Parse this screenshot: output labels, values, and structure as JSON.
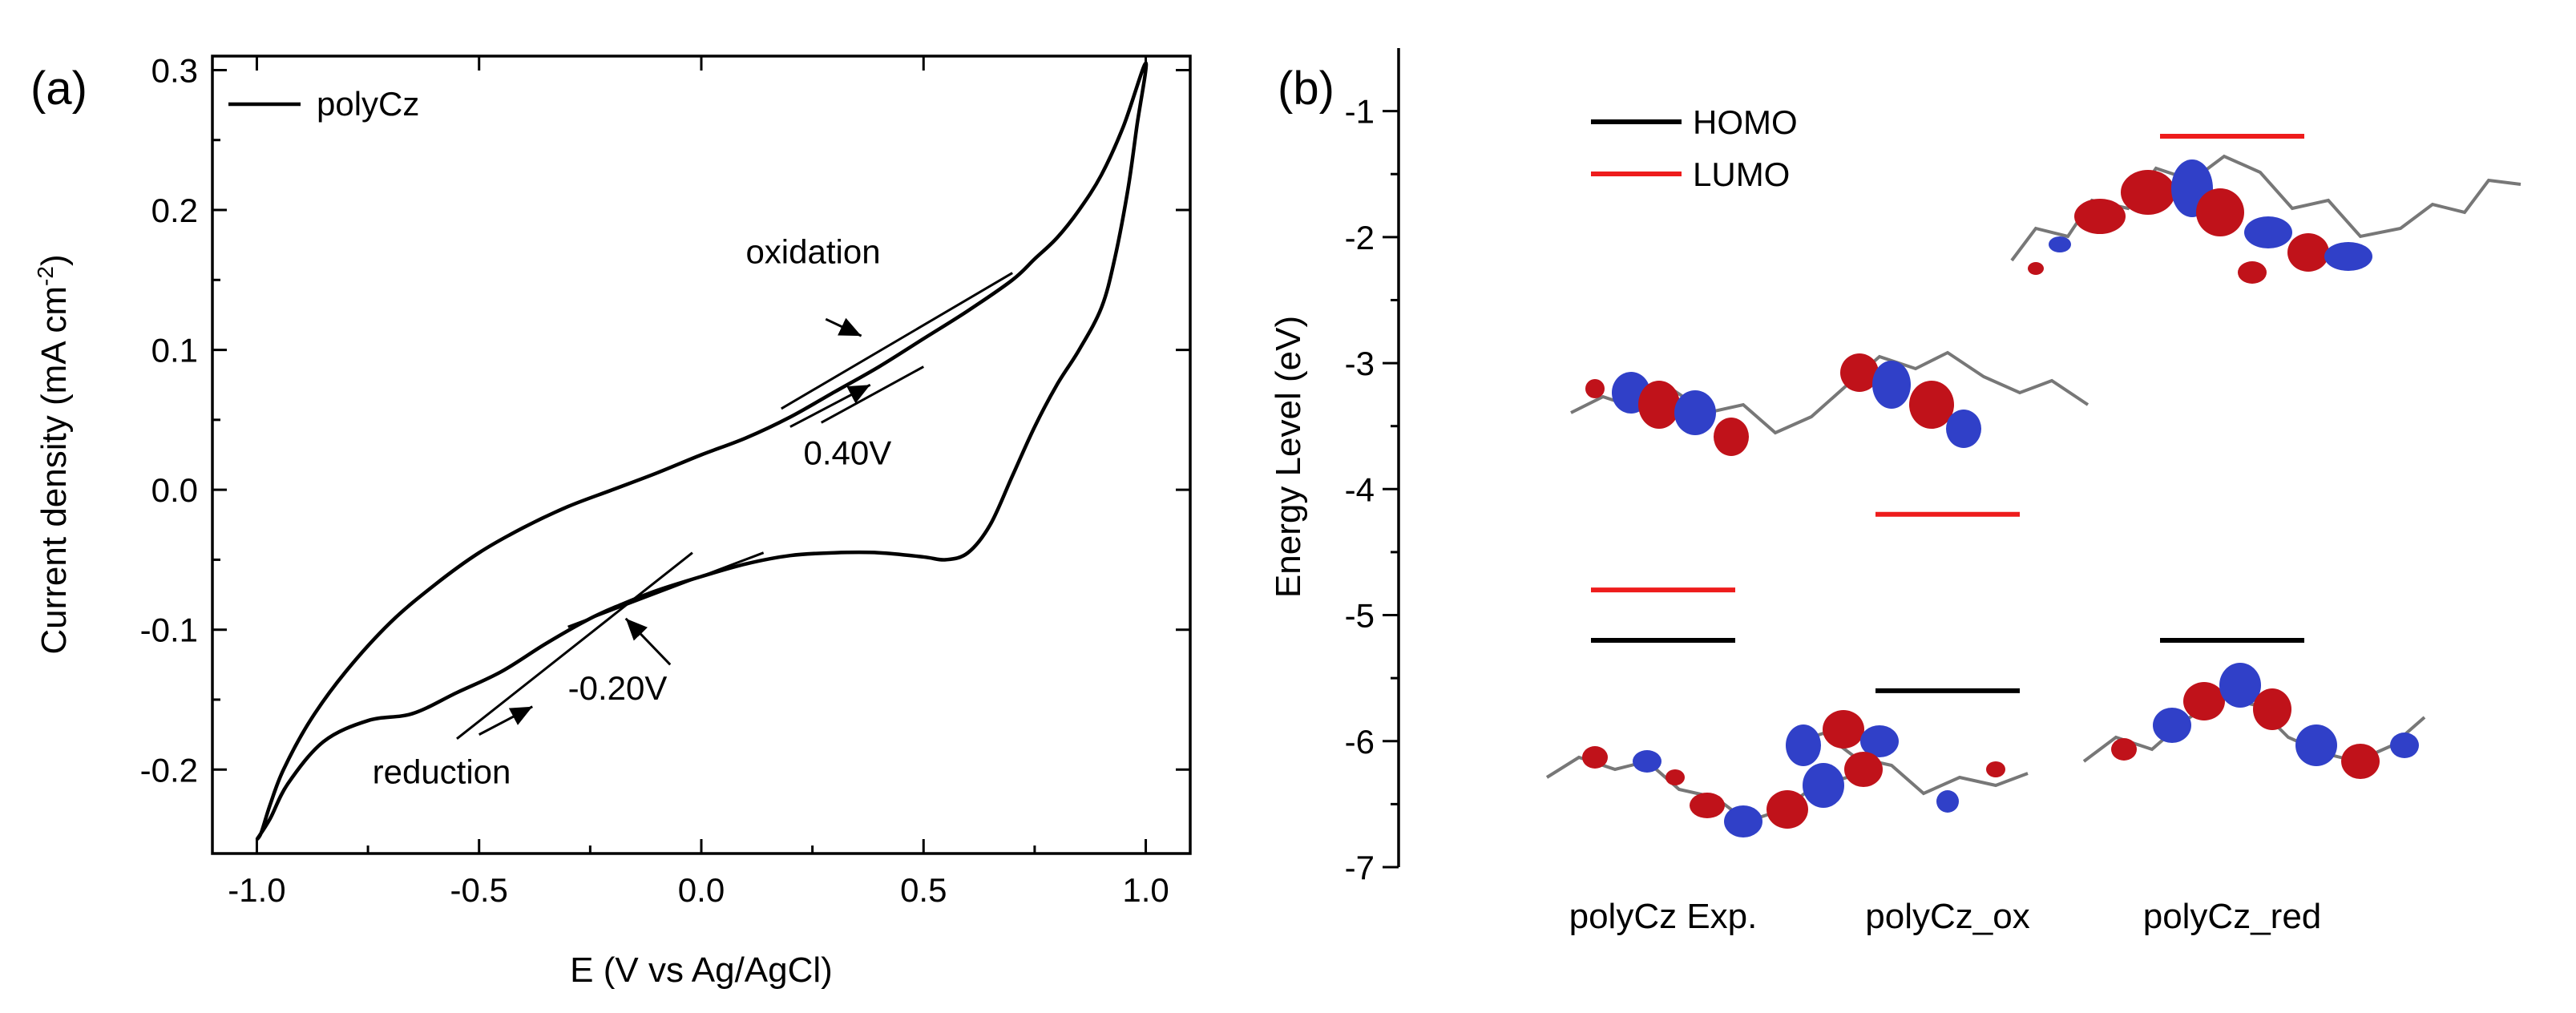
{
  "chart_data": [
    {
      "type": "line",
      "panel_label": "(a)",
      "xlabel": "E (V vs Ag/AgCl)",
      "ylabel_main": "Current density (mA cm",
      "ylabel_sup": "-2",
      "ylabel_close": ")",
      "xlim": [
        -1.1,
        1.1
      ],
      "ylim": [
        -0.26,
        0.31
      ],
      "xticks": [
        -1.0,
        -0.5,
        0.0,
        0.5,
        1.0
      ],
      "xtick_labels": [
        "-1.0",
        "-0.5",
        "0.0",
        "0.5",
        "1.0"
      ],
      "yticks": [
        -0.2,
        -0.1,
        0.0,
        0.1,
        0.2,
        0.3
      ],
      "ytick_labels": [
        "-0.2",
        "-0.1",
        "0.0",
        "0.1",
        "0.2",
        "0.3"
      ],
      "legend": {
        "label": "polyCz",
        "position": "top-left",
        "color": "#000000"
      },
      "series": [
        {
          "name": "polyCz",
          "color": "#000000",
          "points": [
            [
              -1.0,
              -0.25
            ],
            [
              -0.97,
              -0.235
            ],
            [
              -0.93,
              -0.21
            ],
            [
              -0.85,
              -0.18
            ],
            [
              -0.75,
              -0.165
            ],
            [
              -0.65,
              -0.16
            ],
            [
              -0.55,
              -0.145
            ],
            [
              -0.45,
              -0.13
            ],
            [
              -0.35,
              -0.11
            ],
            [
              -0.25,
              -0.092
            ],
            [
              -0.18,
              -0.082
            ],
            [
              -0.1,
              -0.072
            ],
            [
              0.0,
              -0.062
            ],
            [
              0.1,
              -0.053
            ],
            [
              0.2,
              -0.047
            ],
            [
              0.3,
              -0.045
            ],
            [
              0.4,
              -0.045
            ],
            [
              0.5,
              -0.048
            ],
            [
              0.55,
              -0.05
            ],
            [
              0.6,
              -0.045
            ],
            [
              0.65,
              -0.025
            ],
            [
              0.7,
              0.01
            ],
            [
              0.75,
              0.045
            ],
            [
              0.8,
              0.075
            ],
            [
              0.85,
              0.1
            ],
            [
              0.9,
              0.13
            ],
            [
              0.93,
              0.165
            ],
            [
              0.96,
              0.215
            ],
            [
              0.98,
              0.26
            ],
            [
              1.0,
              0.305
            ],
            [
              0.95,
              0.26
            ],
            [
              0.9,
              0.225
            ],
            [
              0.85,
              0.2
            ],
            [
              0.8,
              0.18
            ],
            [
              0.75,
              0.165
            ],
            [
              0.7,
              0.15
            ],
            [
              0.6,
              0.128
            ],
            [
              0.5,
              0.108
            ],
            [
              0.4,
              0.088
            ],
            [
              0.3,
              0.07
            ],
            [
              0.2,
              0.052
            ],
            [
              0.1,
              0.037
            ],
            [
              0.0,
              0.025
            ],
            [
              -0.1,
              0.012
            ],
            [
              -0.2,
              0.0
            ],
            [
              -0.3,
              -0.012
            ],
            [
              -0.4,
              -0.027
            ],
            [
              -0.5,
              -0.045
            ],
            [
              -0.6,
              -0.068
            ],
            [
              -0.7,
              -0.095
            ],
            [
              -0.8,
              -0.13
            ],
            [
              -0.88,
              -0.165
            ],
            [
              -0.94,
              -0.2
            ],
            [
              -0.97,
              -0.225
            ],
            [
              -0.99,
              -0.245
            ],
            [
              -1.0,
              -0.25
            ]
          ]
        }
      ],
      "tangent_lines": [
        {
          "from": [
            0.18,
            0.058
          ],
          "to": [
            0.7,
            0.155
          ]
        },
        {
          "from": [
            0.27,
            0.048
          ],
          "to": [
            0.5,
            0.088
          ]
        },
        {
          "from": [
            -0.3,
            -0.098
          ],
          "to": [
            0.14,
            -0.045
          ]
        },
        {
          "from": [
            -0.55,
            -0.178
          ],
          "to": [
            -0.02,
            -0.045
          ]
        }
      ],
      "annotations": [
        {
          "text": "oxidation",
          "label_at": [
            0.1,
            0.162
          ],
          "arrow_from": [
            0.28,
            0.122
          ],
          "arrow_to": [
            0.36,
            0.11
          ]
        },
        {
          "text": "0.40V",
          "label_at": [
            0.23,
            0.018
          ],
          "arrow_from": [
            0.2,
            0.045
          ],
          "arrow_to": [
            0.38,
            0.075
          ]
        },
        {
          "text": "-0.20V",
          "label_at": [
            -0.3,
            -0.15
          ],
          "arrow_from": [
            -0.07,
            -0.125
          ],
          "arrow_to": [
            -0.17,
            -0.092
          ]
        },
        {
          "text": "reduction",
          "label_at": [
            -0.74,
            -0.21
          ],
          "arrow_from": [
            -0.5,
            -0.175
          ],
          "arrow_to": [
            -0.38,
            -0.155
          ]
        }
      ]
    },
    {
      "type": "energy_level_diagram",
      "panel_label": "(b)",
      "ylabel": "Energy Level (eV)",
      "ylim": [
        -7.0,
        -0.5
      ],
      "yticks": [
        -7,
        -6,
        -5,
        -4,
        -3,
        -2,
        -1
      ],
      "ytick_labels": [
        "-7",
        "-6",
        "-5",
        "-4",
        "-3",
        "-2",
        "-1"
      ],
      "legend": [
        {
          "label": "HOMO",
          "color": "#000000"
        },
        {
          "label": "LUMO",
          "color": "#ee1c1c"
        }
      ],
      "categories": [
        "polyCz Exp.",
        "polyCz_ox",
        "polyCz_red"
      ],
      "homo": [
        -5.2,
        -5.6,
        -5.2
      ],
      "lumo": [
        -4.8,
        -4.2,
        -1.2
      ]
    }
  ]
}
